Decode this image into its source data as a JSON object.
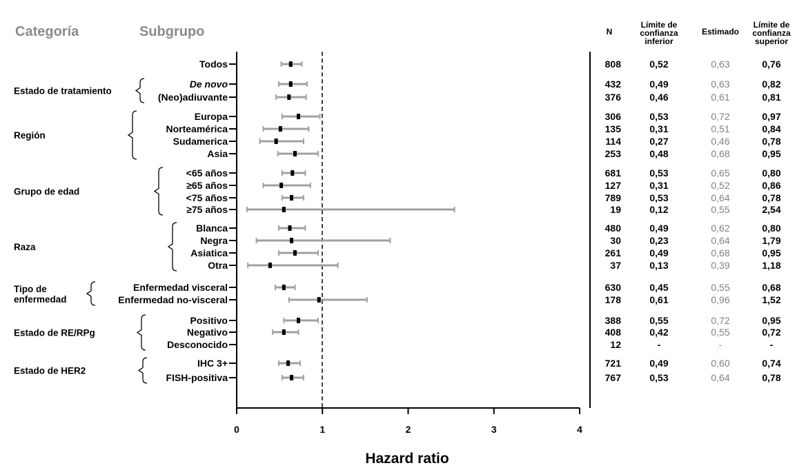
{
  "chart_data": {
    "type": "forest",
    "headers": {
      "category": "Categoría",
      "subgroup": "Subgrupo"
    },
    "columns": {
      "n": "N",
      "lower": [
        "Límite de",
        "confianza",
        "inferior"
      ],
      "estimate": "Estimado",
      "upper": [
        "Límite de",
        "confianza",
        "superior"
      ]
    },
    "xlabel": "Hazard ratio",
    "xlim": [
      0,
      4
    ],
    "xticks": [
      "0",
      "1",
      "2",
      "3",
      "4"
    ],
    "reference_line": 1,
    "categories": [
      {
        "label": [
          "Estado de tratamiento"
        ],
        "rows": [
          1,
          2
        ]
      },
      {
        "label": [
          "Región"
        ],
        "rows": [
          3,
          4,
          5,
          6
        ]
      },
      {
        "label": [
          "Grupo de edad"
        ],
        "rows": [
          7,
          8,
          9,
          10
        ]
      },
      {
        "label": [
          "Raza"
        ],
        "rows": [
          11,
          12,
          13,
          14
        ]
      },
      {
        "label": [
          "Tipo de",
          "enfermedad"
        ],
        "rows": [
          15,
          16
        ]
      },
      {
        "label": [
          "Estado de RE/RPg"
        ],
        "rows": [
          17,
          18,
          19
        ]
      },
      {
        "label": [
          "Estado de HER2"
        ],
        "rows": [
          20,
          21
        ]
      }
    ],
    "rows": [
      {
        "subgroup": "Todos",
        "n": "808",
        "lower": "0,52",
        "estimate": "0,63",
        "upper": "0,76",
        "lo": 0.52,
        "est": 0.63,
        "hi": 0.76
      },
      {
        "subgroup": "De novo",
        "italic": true,
        "n": "432",
        "lower": "0,49",
        "estimate": "0,63",
        "upper": "0,82",
        "lo": 0.49,
        "est": 0.63,
        "hi": 0.82
      },
      {
        "subgroup": "(Neo)adiuvante",
        "n": "376",
        "lower": "0,46",
        "estimate": "0,61",
        "upper": "0,81",
        "lo": 0.46,
        "est": 0.61,
        "hi": 0.81
      },
      {
        "subgroup": "Europa",
        "n": "306",
        "lower": "0,53",
        "estimate": "0,72",
        "upper": "0,97",
        "lo": 0.53,
        "est": 0.72,
        "hi": 0.97
      },
      {
        "subgroup": "Norteamérica",
        "n": "135",
        "lower": "0,31",
        "estimate": "0,51",
        "upper": "0,84",
        "lo": 0.31,
        "est": 0.51,
        "hi": 0.84
      },
      {
        "subgroup": "Sudamerica",
        "n": "114",
        "lower": "0,27",
        "estimate": "0,46",
        "upper": "0,78",
        "lo": 0.27,
        "est": 0.46,
        "hi": 0.78
      },
      {
        "subgroup": "Asia",
        "n": "253",
        "lower": "0,48",
        "estimate": "0,68",
        "upper": "0,95",
        "lo": 0.48,
        "est": 0.68,
        "hi": 0.95
      },
      {
        "subgroup": "<65 años",
        "n": "681",
        "lower": "0,53",
        "estimate": "0,65",
        "upper": "0,80",
        "lo": 0.53,
        "est": 0.65,
        "hi": 0.8
      },
      {
        "subgroup": "≥65 años",
        "n": "127",
        "lower": "0,31",
        "estimate": "0,52",
        "upper": "0,86",
        "lo": 0.31,
        "est": 0.52,
        "hi": 0.86
      },
      {
        "subgroup": "<75 años",
        "n": "789",
        "lower": "0,53",
        "estimate": "0,64",
        "upper": "0,78",
        "lo": 0.53,
        "est": 0.64,
        "hi": 0.78
      },
      {
        "subgroup": "≥75 años",
        "n": "19",
        "lower": "0,12",
        "estimate": "0,55",
        "upper": "2,54",
        "lo": 0.12,
        "est": 0.55,
        "hi": 2.54
      },
      {
        "subgroup": "Blanca",
        "n": "480",
        "lower": "0,49",
        "estimate": "0,62",
        "upper": "0,80",
        "lo": 0.49,
        "est": 0.62,
        "hi": 0.8
      },
      {
        "subgroup": "Negra",
        "n": "30",
        "lower": "0,23",
        "estimate": "0,64",
        "upper": "1,79",
        "lo": 0.23,
        "est": 0.64,
        "hi": 1.79
      },
      {
        "subgroup": "Asiatica",
        "n": "261",
        "lower": "0,49",
        "estimate": "0,68",
        "upper": "0,95",
        "lo": 0.49,
        "est": 0.68,
        "hi": 0.95
      },
      {
        "subgroup": "Otra",
        "n": "37",
        "lower": "0,13",
        "estimate": "0,39",
        "upper": "1,18",
        "lo": 0.13,
        "est": 0.39,
        "hi": 1.18
      },
      {
        "subgroup": "Enfermedad visceral",
        "n": "630",
        "lower": "0,45",
        "estimate": "0,55",
        "upper": "0,68",
        "lo": 0.45,
        "est": 0.55,
        "hi": 0.68
      },
      {
        "subgroup": "Enfermedad no-visceral",
        "n": "178",
        "lower": "0,61",
        "estimate": "0,96",
        "upper": "1,52",
        "lo": 0.61,
        "est": 0.96,
        "hi": 1.52
      },
      {
        "subgroup": "Positivo",
        "n": "388",
        "lower": "0,55",
        "estimate": "0,72",
        "upper": "0,95",
        "lo": 0.55,
        "est": 0.72,
        "hi": 0.95
      },
      {
        "subgroup": "Negativo",
        "n": "408",
        "lower": "0,42",
        "estimate": "0,55",
        "upper": "0,72",
        "lo": 0.42,
        "est": 0.55,
        "hi": 0.72
      },
      {
        "subgroup": "Desconocido",
        "n": "12",
        "lower": "-",
        "estimate": "-",
        "upper": "-",
        "lo": null,
        "est": null,
        "hi": null
      },
      {
        "subgroup": "IHC 3+",
        "n": "721",
        "lower": "0,49",
        "estimate": "0,60",
        "upper": "0,74",
        "lo": 0.49,
        "est": 0.6,
        "hi": 0.74
      },
      {
        "subgroup": "FISH-positiva",
        "n": "767",
        "lower": "0,53",
        "estimate": "0,64",
        "upper": "0,78",
        "lo": 0.53,
        "est": 0.64,
        "hi": 0.78
      }
    ],
    "colors": {
      "ci_line": "#a0a0a0",
      "point": "#000000",
      "estimate_text": "#808080",
      "header_text": "#8a8a8a"
    }
  }
}
